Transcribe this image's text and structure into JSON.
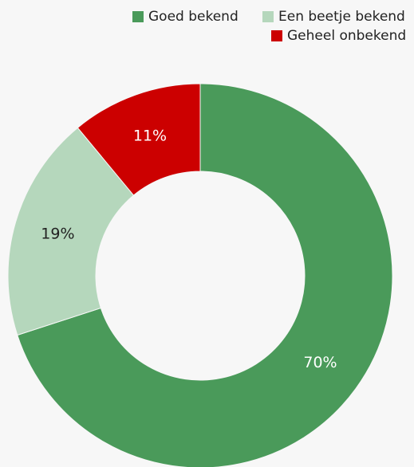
{
  "chart_data": {
    "type": "donut",
    "categories": [
      "Goed bekend",
      "Een beetje bekend",
      "Geheel onbekend"
    ],
    "values": [
      70,
      19,
      11
    ],
    "value_labels": [
      "70%",
      "19%",
      "11%"
    ],
    "colors": [
      "#4a9a5a",
      "#b5d7bc",
      "#cc0000"
    ],
    "legend": "top-right"
  }
}
